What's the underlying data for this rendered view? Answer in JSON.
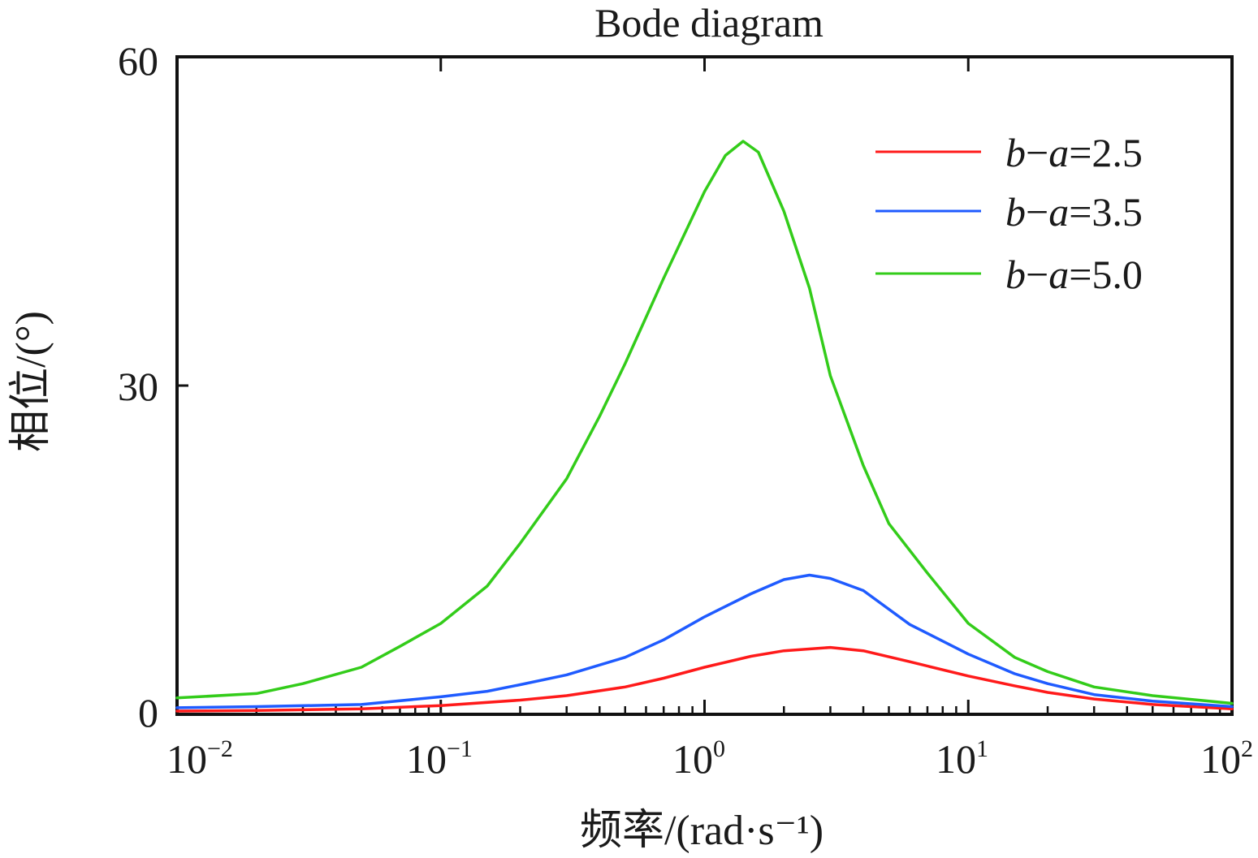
{
  "chart_data": {
    "type": "line",
    "title": "Bode diagram",
    "xlabel": "频率/(rad·s⁻¹)",
    "ylabel": "相位/(°)",
    "xscale": "log",
    "xlim": [
      0.01,
      100
    ],
    "ylim": [
      0,
      60
    ],
    "yticks": [
      "0",
      "30",
      "60"
    ],
    "xticks": [
      {
        "base": "10",
        "exp": "−2"
      },
      {
        "base": "10",
        "exp": "−1"
      },
      {
        "base": "10",
        "exp": "0"
      },
      {
        "base": "10",
        "exp": "1"
      },
      {
        "base": "10",
        "exp": "2"
      }
    ],
    "grid": false,
    "legend_position": "top-right",
    "series": [
      {
        "name": "b−a=2.5",
        "name_parts": {
          "b": "b",
          "dash": "−",
          "a": "a",
          "value": "=2.5"
        },
        "color": "#ff1a1a",
        "x": [
          0.01,
          0.02,
          0.05,
          0.1,
          0.2,
          0.3,
          0.5,
          0.7,
          1.0,
          1.5,
          2.0,
          3.0,
          4.0,
          6.0,
          10,
          15,
          20,
          30,
          50,
          100
        ],
        "y": [
          0.3,
          0.35,
          0.5,
          0.8,
          1.3,
          1.7,
          2.5,
          3.3,
          4.3,
          5.3,
          5.8,
          6.1,
          5.8,
          4.8,
          3.5,
          2.6,
          2.0,
          1.4,
          0.9,
          0.5
        ]
      },
      {
        "name": "b−a=3.5",
        "name_parts": {
          "b": "b",
          "dash": "−",
          "a": "a",
          "value": "=3.5"
        },
        "color": "#1f5bff",
        "x": [
          0.01,
          0.02,
          0.05,
          0.1,
          0.15,
          0.2,
          0.3,
          0.5,
          0.7,
          1.0,
          1.5,
          2.0,
          2.5,
          3.0,
          4.0,
          6.0,
          10,
          15,
          20,
          30,
          50,
          100
        ],
        "y": [
          0.6,
          0.7,
          0.9,
          1.6,
          2.1,
          2.7,
          3.6,
          5.2,
          6.8,
          8.9,
          11.0,
          12.3,
          12.7,
          12.4,
          11.3,
          8.2,
          5.5,
          3.7,
          2.8,
          1.8,
          1.2,
          0.7
        ]
      },
      {
        "name": "b−a=5.0",
        "name_parts": {
          "b": "b",
          "dash": "−",
          "a": "a",
          "value": "=5.0"
        },
        "color": "#33cc1a",
        "x": [
          0.01,
          0.02,
          0.03,
          0.05,
          0.07,
          0.1,
          0.15,
          0.2,
          0.3,
          0.4,
          0.5,
          0.7,
          1.0,
          1.2,
          1.4,
          1.6,
          2.0,
          2.5,
          3.0,
          4.0,
          5.0,
          7.0,
          10,
          15,
          20,
          30,
          50,
          100
        ],
        "y": [
          1.5,
          1.9,
          2.8,
          4.3,
          6.2,
          8.3,
          11.7,
          15.6,
          21.5,
          27.2,
          32.0,
          39.8,
          47.7,
          51.0,
          52.3,
          51.3,
          45.9,
          38.9,
          30.9,
          22.7,
          17.4,
          12.9,
          8.3,
          5.2,
          3.9,
          2.5,
          1.7,
          1.0
        ]
      }
    ]
  }
}
